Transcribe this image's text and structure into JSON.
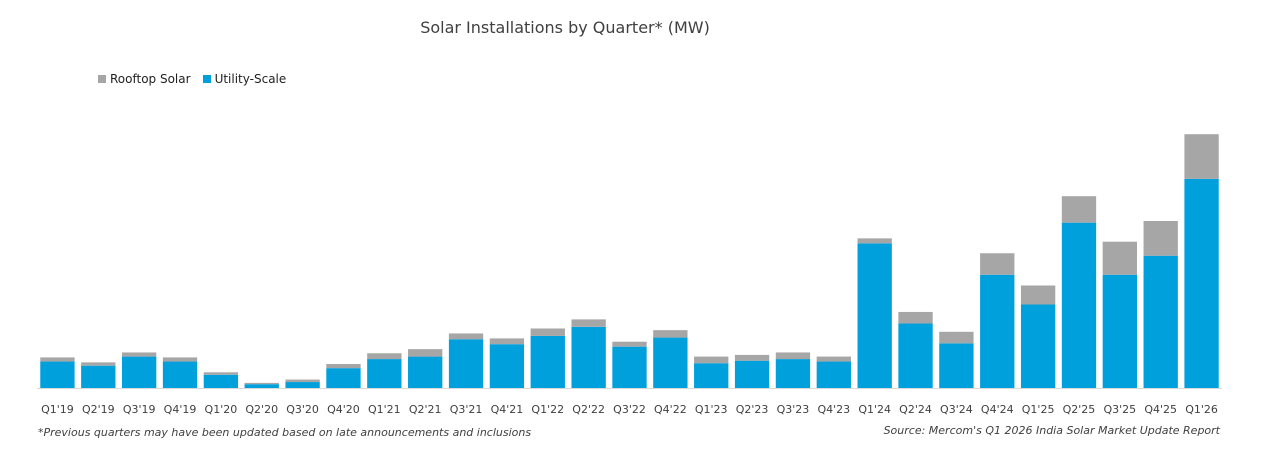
{
  "chart_data": {
    "type": "bar",
    "stacked": true,
    "title": "Solar Installations by Quarter* (MW)",
    "legend_position": "top-left",
    "grid": false,
    "categories": [
      "Q1'19",
      "Q2'19",
      "Q3'19",
      "Q4'19",
      "Q1'20",
      "Q2'20",
      "Q3'20",
      "Q4'20",
      "Q1'21",
      "Q2'21",
      "Q3'21",
      "Q4'21",
      "Q1'22",
      "Q2'22",
      "Q3'22",
      "Q4'22",
      "Q1'23",
      "Q2'23",
      "Q3'23",
      "Q4'23",
      "Q1'24",
      "Q2'24",
      "Q3'24",
      "Q4'24",
      "Q1'25",
      "Q2'25",
      "Q3'25",
      "Q4'25",
      "Q1'26"
    ],
    "series": [
      {
        "name": "Utility-Scale",
        "color": "#00A0DC",
        "values": [
          1600,
          1350,
          1900,
          1600,
          800,
          230,
          360,
          1200,
          1750,
          1900,
          2950,
          2650,
          3150,
          3700,
          2500,
          3050,
          1500,
          1650,
          1750,
          1600,
          8750,
          3900,
          2700,
          6850,
          5050,
          10000,
          6850,
          8000,
          12650
        ]
      },
      {
        "name": "Rooftop Solar",
        "color": "#A6A6A6",
        "values": [
          250,
          200,
          250,
          250,
          150,
          80,
          150,
          250,
          350,
          450,
          350,
          350,
          450,
          450,
          300,
          450,
          400,
          350,
          400,
          300,
          300,
          700,
          700,
          1300,
          1150,
          1600,
          2000,
          2100,
          2700
        ]
      }
    ],
    "ylim": [
      0,
      15000
    ]
  },
  "footnote": "*Previous quarters may have been updated based on late announcements and inclusions",
  "source": "Source: Mercom's Q1 2026 India Solar Market Update Report"
}
